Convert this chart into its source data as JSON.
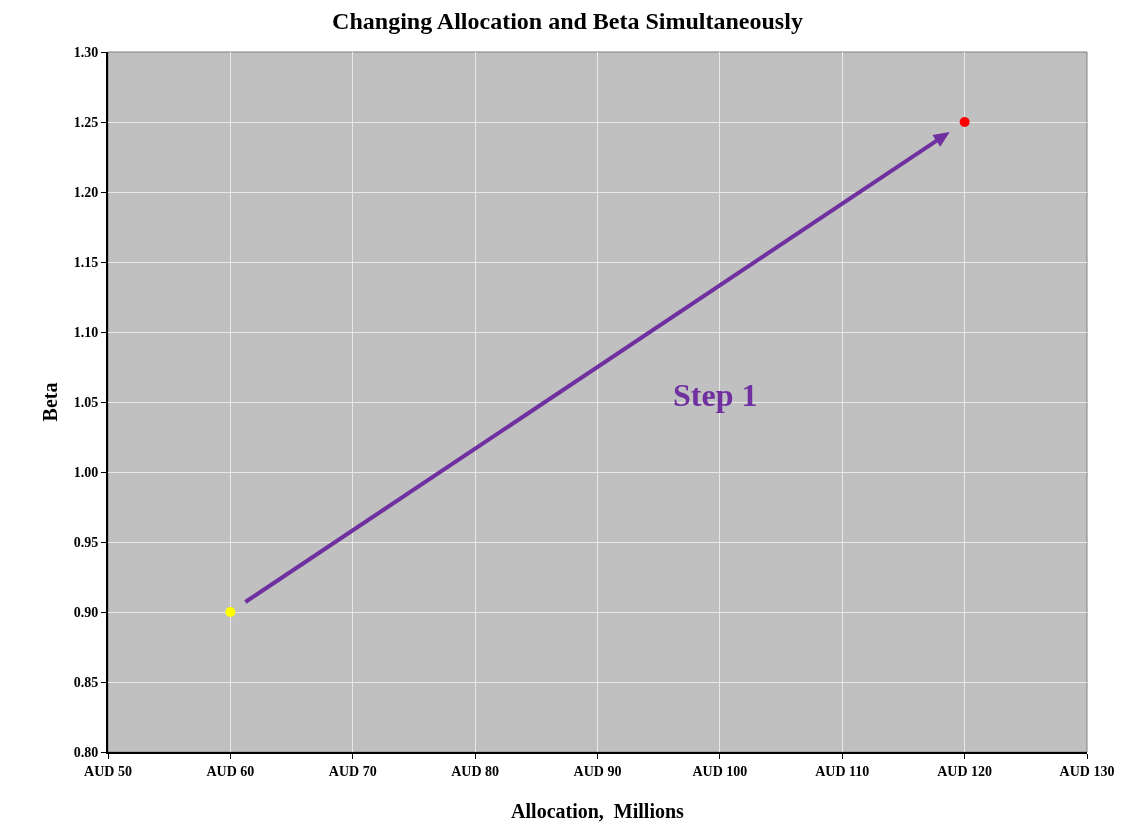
{
  "chart_data": {
    "type": "scatter",
    "title": "Changing Allocation and Beta Simultaneously",
    "xlabel": "Allocation,  Millions",
    "ylabel": "Beta",
    "categories": [
      "AUD 50",
      "AUD 60",
      "AUD 70",
      "AUD 80",
      "AUD 90",
      "AUD 100",
      "AUD 110",
      "AUD 120",
      "AUD 130"
    ],
    "values": [
      null,
      0.9,
      null,
      null,
      null,
      null,
      null,
      1.25,
      null
    ],
    "colors": [
      null,
      "#ffff00",
      null,
      null,
      null,
      null,
      null,
      "#ff0000",
      null
    ],
    "marker": "circle",
    "grid": true,
    "annotations": [
      "Step 1"
    ],
    "ylim": [
      0.8,
      1.3
    ],
    "yticks": [
      {
        "value": 0.8,
        "label": "0.80"
      },
      {
        "value": 0.85,
        "label": "0.85"
      },
      {
        "value": 0.9,
        "label": "0.90"
      },
      {
        "value": 0.95,
        "label": "0.95"
      },
      {
        "value": 1.0,
        "label": "1.00"
      },
      {
        "value": 1.05,
        "label": "1.05"
      },
      {
        "value": 1.1,
        "label": "1.10"
      },
      {
        "value": 1.15,
        "label": "1.15"
      },
      {
        "value": 1.2,
        "label": "1.20"
      },
      {
        "value": 1.25,
        "label": "1.25"
      },
      {
        "value": 1.3,
        "label": "1.30"
      }
    ]
  }
}
